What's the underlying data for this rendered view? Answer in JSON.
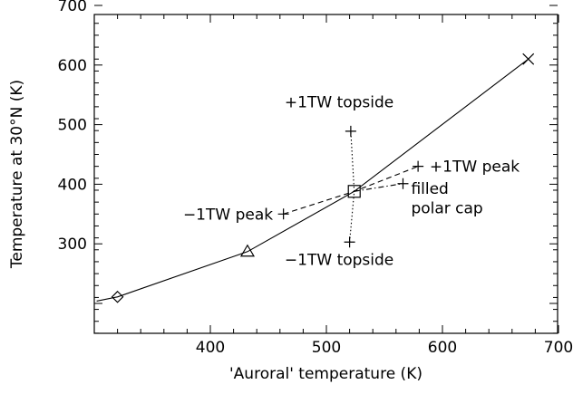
{
  "chart_data": {
    "type": "line",
    "title": "",
    "xlabel": "'Auroral' temperature (K)",
    "ylabel": "Temperature at 30°N (K)",
    "xlim": [
      300,
      700
    ],
    "ylim": [
      150,
      700
    ],
    "x_ticks": [
      400,
      500,
      600,
      700
    ],
    "y_ticks": [
      300,
      400,
      500,
      600,
      700
    ],
    "grid": false,
    "series": [
      {
        "style": "solid",
        "points": [
          [
            302,
            204
          ],
          [
            320,
            211
          ],
          [
            432,
            287
          ],
          [
            524,
            388
          ],
          [
            674,
            610
          ]
        ]
      },
      {
        "style": "dashed",
        "points": [
          [
            463,
            350
          ],
          [
            524,
            388
          ],
          [
            579,
            430
          ]
        ]
      },
      {
        "style": "dashdot",
        "points": [
          [
            524,
            388
          ],
          [
            566,
            401
          ]
        ]
      },
      {
        "style": "dotted",
        "points": [
          [
            520,
            303
          ],
          [
            524,
            388
          ],
          [
            521,
            489
          ]
        ]
      }
    ],
    "markers": [
      {
        "id": "diamond-marker",
        "symbol": "diamond",
        "x": 320,
        "y": 211
      },
      {
        "id": "triangle-marker",
        "symbol": "triangle",
        "x": 432,
        "y": 287
      },
      {
        "id": "square-marker",
        "symbol": "square",
        "x": 524,
        "y": 388
      },
      {
        "id": "x-marker",
        "symbol": "x",
        "x": 674,
        "y": 610
      },
      {
        "id": "plus-plus-peak",
        "symbol": "plus",
        "x": 579,
        "y": 430
      },
      {
        "id": "plus-minus-peak",
        "symbol": "plus",
        "x": 463,
        "y": 350
      },
      {
        "id": "plus-plus-topside",
        "symbol": "plus",
        "x": 521,
        "y": 489
      },
      {
        "id": "plus-minus-topside",
        "symbol": "plus",
        "x": 520,
        "y": 303
      },
      {
        "id": "plus-filled-cap",
        "symbol": "plus",
        "x": 566,
        "y": 401
      }
    ],
    "annotations": [
      {
        "id": "plus-topside-label",
        "text": "+1TW topside",
        "x": 464,
        "y": 538,
        "anchor": "start"
      },
      {
        "id": "plus-peak-label",
        "text": "+1TW peak",
        "x": 589,
        "y": 430,
        "anchor": "start"
      },
      {
        "id": "minus-peak-label",
        "text": "−1TW peak",
        "x": 454,
        "y": 350,
        "anchor": "end"
      },
      {
        "id": "filled-cap-label-1",
        "text": "filled",
        "x": 573,
        "y": 393,
        "anchor": "start"
      },
      {
        "id": "filled-cap-label-2",
        "text": "polar cap",
        "x": 573,
        "y": 360,
        "anchor": "start"
      },
      {
        "id": "minus-topside-label",
        "text": "−1TW topside",
        "x": 464,
        "y": 274,
        "anchor": "start"
      }
    ]
  }
}
